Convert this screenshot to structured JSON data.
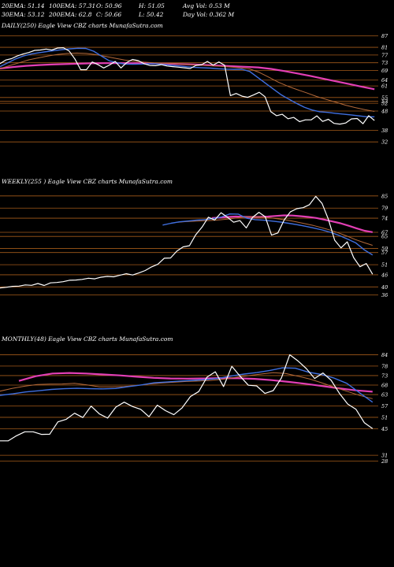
{
  "header": {
    "row1": [
      "20EMA: 51.14",
      "100EMA: 57.31",
      "O: 50.96",
      "H: 51.05",
      "Avg Vol: 0.53 M"
    ],
    "row2": [
      "30EMA: 53.12",
      "200EMA: 62.8",
      "C: 50.66",
      "L: 50.42",
      "Day Vol: 0.362 M"
    ]
  },
  "colors": {
    "background": "#000000",
    "price": "#ffffff",
    "ema_short": "#3f6fe0",
    "ema_long": "#e23fb5",
    "ema_mid": "#b56a3a",
    "grid": "#a35a1a"
  },
  "chart_data": [
    {
      "type": "line",
      "panel": "daily",
      "caption": "DAILY(250) Eagle  View  CBZ charts MunafaSutra.com",
      "y_ticks": [
        "87",
        "81",
        "77",
        "73",
        "69",
        "64",
        "61",
        "55",
        "53",
        "52",
        "48",
        "38",
        "32"
      ],
      "ylim": [
        28,
        90
      ],
      "series": [
        {
          "role": "price",
          "values": [
            72.5,
            74.4,
            75.1,
            76.5,
            77.5,
            78.3,
            79.4,
            79.6,
            80.1,
            79.6,
            80.6,
            80.8,
            79.1,
            75.0,
            69.4,
            69.4,
            73.4,
            72.0,
            70.3,
            71.8,
            73.7,
            70.3,
            73.1,
            74.7,
            74.1,
            72.5,
            71.6,
            71.5,
            72.0,
            71.3,
            71.0,
            70.7,
            70.4,
            70.0,
            71.6,
            72.0,
            73.7,
            71.8,
            73.4,
            71.7,
            56.0,
            57.1,
            55.7,
            55.1,
            56.3,
            57.7,
            55.4,
            47.7,
            45.6,
            46.3,
            44.0,
            44.7,
            42.5,
            43.4,
            43.4,
            45.5,
            42.6,
            43.7,
            41.6,
            41.2,
            41.8,
            43.9,
            44.1,
            41.4,
            45.6,
            43.1
          ]
        },
        {
          "role": "ema_short",
          "values": [
            71.0,
            73.0,
            75.0,
            76.5,
            77.5,
            78.2,
            78.8,
            79.3,
            79.8,
            80.2,
            80.5,
            80.4,
            79.0,
            76.5,
            74.0,
            73.0,
            72.3,
            72.2,
            72.3,
            72.5,
            72.4,
            72.1,
            71.7,
            71.3,
            70.9,
            70.6,
            70.4,
            70.2,
            69.9,
            69.7,
            69.6,
            69.6,
            68.5,
            65.5,
            62.5,
            59.5,
            56.5,
            54.2,
            52.0,
            50.0,
            48.5,
            47.6,
            47.3,
            46.8,
            46.4,
            46.0,
            45.5,
            45.0,
            45.0
          ]
        },
        {
          "role": "ema_mid",
          "values": [
            70.0,
            71.5,
            73.0,
            74.5,
            75.5,
            76.5,
            77.3,
            77.8,
            78.0,
            77.8,
            77.2,
            76.3,
            75.3,
            74.4,
            73.8,
            73.3,
            73.0,
            72.8,
            72.6,
            72.3,
            72.0,
            71.7,
            71.4,
            71.1,
            70.8,
            70.4,
            69.8,
            68.0,
            65.5,
            62.9,
            60.8,
            59.0,
            57.3,
            55.5,
            54.0,
            52.5,
            51.0,
            49.8,
            48.7,
            47.8
          ]
        },
        {
          "role": "ema_long",
          "values": [
            70.0,
            70.8,
            71.4,
            71.8,
            72.1,
            72.3,
            72.5,
            72.7,
            72.8,
            72.8,
            72.8,
            72.7,
            72.6,
            72.5,
            72.3,
            72.1,
            71.8,
            71.5,
            71.2,
            70.9,
            70.6,
            69.8,
            68.7,
            67.5,
            66.2,
            64.8,
            63.4,
            62.0,
            60.6,
            59.3
          ]
        }
      ]
    },
    {
      "type": "line",
      "panel": "weekly",
      "caption": "WEEKLY(255                ) Eagle  View  CBZ charts MunafaSutra.com",
      "y_ticks": [
        "85",
        "79",
        "74",
        "67",
        "65",
        "59",
        "57",
        "51",
        "46",
        "40",
        "36"
      ],
      "ylim": [
        30,
        90
      ],
      "series": [
        {
          "role": "price",
          "values": [
            39.5,
            39.8,
            40.3,
            40.4,
            41.0,
            40.8,
            41.7,
            40.7,
            42.0,
            42.2,
            42.6,
            43.3,
            43.4,
            43.7,
            44.3,
            44.0,
            44.8,
            45.2,
            45.0,
            45.8,
            46.5,
            45.9,
            46.9,
            48.1,
            49.9,
            51.2,
            54.2,
            54.3,
            57.7,
            59.8,
            60.4,
            65.8,
            69.6,
            74.5,
            73.1,
            76.7,
            74.5,
            72.0,
            72.8,
            69.2,
            74.4,
            76.9,
            74.7,
            65.6,
            66.7,
            73.1,
            77.2,
            78.7,
            79.2,
            80.7,
            84.8,
            81.3,
            73.5,
            63.1,
            59.3,
            62.3,
            54.5,
            50.0,
            51.6,
            46.3
          ]
        },
        {
          "role": "ema_short",
          "values": [
            70.6,
            71.5,
            72.2,
            72.6,
            73.0,
            73.3,
            73.8,
            74.6,
            76.1,
            76.0,
            74.0,
            73.3,
            73.0,
            72.6,
            72.1,
            71.5,
            70.8,
            70.0,
            69.1,
            68.2,
            67.0,
            65.5,
            63.7,
            61.8,
            58.4,
            55.8
          ]
        },
        {
          "role": "ema_mid",
          "values": [
            72.0,
            72.3,
            72.5,
            72.7,
            72.9,
            73.2,
            73.6,
            74.1,
            74.7,
            74.7,
            74.4,
            74.1,
            73.6,
            73.0,
            72.2,
            71.3,
            70.4,
            69.3,
            68.1,
            66.7,
            65.1,
            63.4,
            61.9,
            60.6
          ]
        },
        {
          "role": "ema_long",
          "values": [
            74.1,
            74.3,
            74.6,
            74.8,
            74.7,
            74.6,
            74.6,
            74.8,
            75.1,
            75.4,
            75.3,
            75.0,
            74.6,
            74.1,
            73.3,
            72.4,
            71.5,
            70.3,
            69.0,
            67.8,
            67.1
          ]
        }
      ]
    },
    {
      "type": "line",
      "panel": "monthly",
      "caption": "MONTHLY(48) Eagle  View  CBZ charts MunafaSutra.com",
      "y_ticks": [
        "84",
        "78",
        "73",
        "68",
        "63",
        "57",
        "51",
        "45",
        "31",
        "28"
      ],
      "ylim": [
        24,
        90
      ],
      "series": [
        {
          "role": "price",
          "values": [
            38.6,
            38.6,
            41.3,
            43.4,
            43.4,
            42.0,
            42.1,
            48.6,
            50.0,
            53.2,
            50.9,
            56.9,
            52.8,
            50.6,
            56.4,
            59.0,
            56.7,
            55.2,
            51.3,
            57.4,
            54.5,
            52.4,
            56.0,
            62.0,
            64.6,
            72.2,
            75.0,
            67.2,
            77.9,
            72.7,
            67.9,
            67.6,
            63.6,
            65.1,
            71.8,
            84.0,
            80.7,
            76.7,
            71.5,
            74.4,
            70.5,
            63.6,
            58.0,
            55.2,
            48.2,
            45.1
          ]
        },
        {
          "role": "ema_short",
          "values": [
            62.6,
            63.4,
            64.4,
            65.0,
            65.7,
            66.1,
            66.3,
            66.1,
            66.0,
            66.2,
            67.2,
            68.1,
            69.2,
            69.6,
            70.1,
            70.5,
            70.9,
            71.5,
            72.8,
            73.8,
            74.6,
            75.7,
            77.1,
            76.9,
            74.8,
            73.6,
            71.7,
            68.9,
            63.9,
            59.0
          ]
        },
        {
          "role": "ema_mid",
          "values": [
            64.8,
            66.3,
            67.4,
            68.3,
            68.5,
            68.6,
            68.9,
            68.1,
            67.1,
            67.1,
            67.2,
            67.8,
            68.6,
            69.1,
            69.5,
            69.9,
            70.1,
            70.5,
            71.1,
            72.1,
            73.0,
            73.8,
            74.5,
            74.1,
            72.7,
            71.1,
            69.0,
            66.7,
            64.6,
            62.5,
            60.8
          ]
        },
        {
          "role": "ema_long",
          "values": [
            70.2,
            72.7,
            74.1,
            74.4,
            74.1,
            73.6,
            73.1,
            72.4,
            71.8,
            71.5,
            71.4,
            71.5,
            71.7,
            71.6,
            71.3,
            70.6,
            69.7,
            68.7,
            67.5,
            66.3,
            65.2,
            64.5
          ]
        }
      ]
    }
  ]
}
